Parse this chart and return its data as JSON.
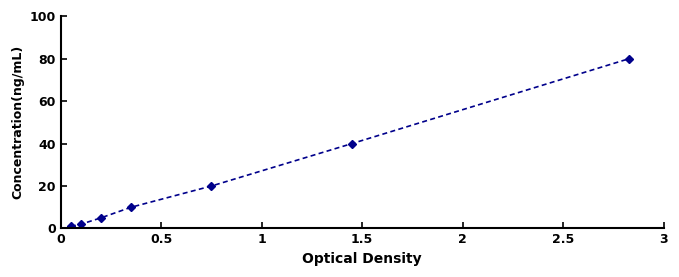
{
  "x": [
    0.05,
    0.1,
    0.2,
    0.35,
    0.75,
    1.45,
    2.83
  ],
  "y": [
    1,
    2,
    5,
    10,
    20,
    40,
    80
  ],
  "line_color": "#00008B",
  "marker": "D",
  "marker_size": 4,
  "linestyle": "--",
  "linewidth": 1.2,
  "xlabel": "Optical Density",
  "ylabel": "Concentration(ng/mL)",
  "xlim": [
    0,
    3.0
  ],
  "ylim": [
    0,
    100
  ],
  "xticks": [
    0,
    0.5,
    1,
    1.5,
    2,
    2.5,
    3
  ],
  "xtick_labels": [
    "0",
    "0.5",
    "1",
    "1.5",
    "2",
    "2.5",
    "3"
  ],
  "yticks": [
    0,
    20,
    40,
    60,
    80,
    100
  ],
  "ytick_labels": [
    "0",
    "20",
    "40",
    "60",
    "80",
    "100"
  ],
  "xlabel_fontsize": 10,
  "ylabel_fontsize": 9,
  "tick_fontsize": 9,
  "xlabel_fontweight": "bold",
  "ylabel_fontweight": "bold",
  "tick_fontweight": "bold",
  "background_color": "#ffffff"
}
